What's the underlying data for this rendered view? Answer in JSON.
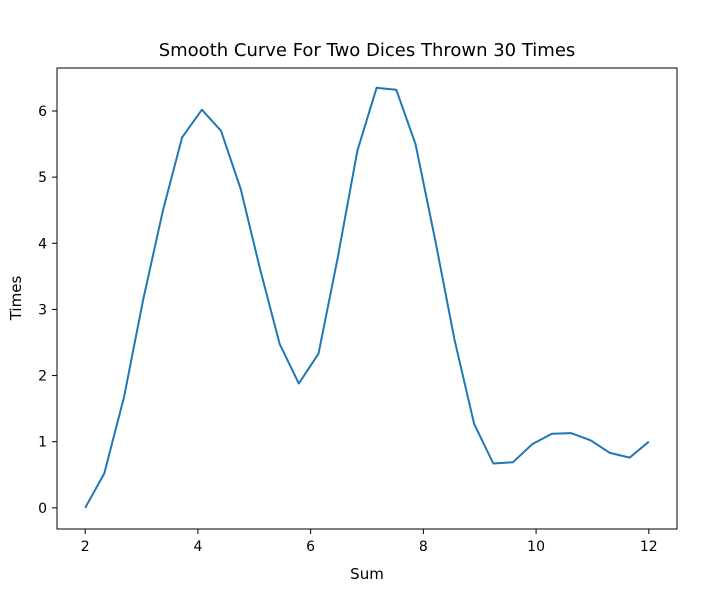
{
  "chart_data": {
    "type": "line",
    "title": "Smooth Curve For Two Dices Thrown 30 Times",
    "xlabel": "Sum",
    "ylabel": "Times",
    "xlim": [
      1.5,
      12.5
    ],
    "ylim": [
      -0.32,
      6.65
    ],
    "xticks": [
      2,
      4,
      6,
      8,
      10,
      12
    ],
    "yticks": [
      0,
      1,
      2,
      3,
      4,
      5,
      6
    ],
    "grid": false,
    "line_color": "#1f77b4",
    "series": [
      {
        "x": [
          2.0,
          2.34,
          2.69,
          3.03,
          3.38,
          3.72,
          4.07,
          4.41,
          4.76,
          5.1,
          5.45,
          5.79,
          6.14,
          6.48,
          6.83,
          7.17,
          7.52,
          7.86,
          8.21,
          8.55,
          8.9,
          9.24,
          9.59,
          9.93,
          10.28,
          10.62,
          10.97,
          11.31,
          11.66,
          12.0
        ],
        "y": [
          0.0,
          0.52,
          1.68,
          3.15,
          4.5,
          5.6,
          6.02,
          5.7,
          4.82,
          3.62,
          2.48,
          1.88,
          2.33,
          3.78,
          5.4,
          6.35,
          6.32,
          5.5,
          4.05,
          2.55,
          1.27,
          0.67,
          0.69,
          0.96,
          1.12,
          1.13,
          1.02,
          0.83,
          0.76,
          1.0
        ]
      }
    ]
  }
}
